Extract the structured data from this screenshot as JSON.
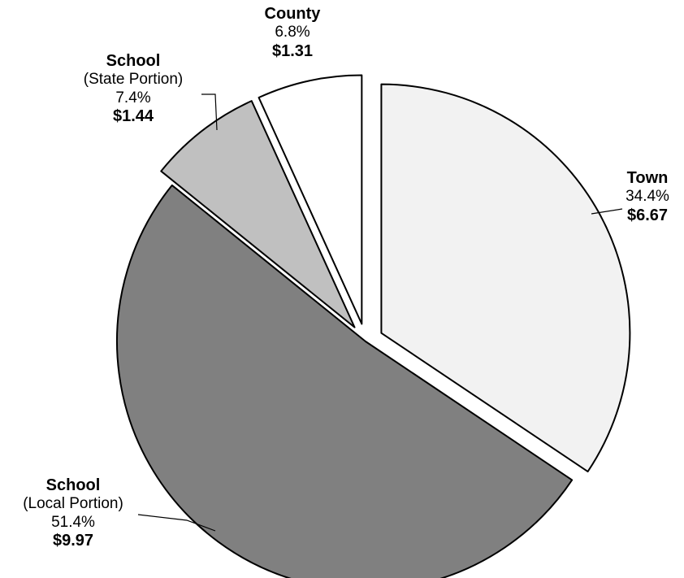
{
  "chart_data": {
    "type": "pie",
    "title": "",
    "start_angle_deg": 0,
    "direction": "clockwise",
    "slices": [
      {
        "name": "Town",
        "sub": "",
        "percent": 34.4,
        "percent_label": "34.4%",
        "value_label": "$6.67",
        "value": 6.67,
        "color": "#f2f2f2",
        "exploded": true
      },
      {
        "name": "School",
        "sub": "(Local Portion)",
        "percent": 51.4,
        "percent_label": "51.4%",
        "value_label": "$9.97",
        "value": 9.97,
        "color": "#808080",
        "exploded": false
      },
      {
        "name": "School",
        "sub": "(State Portion)",
        "percent": 7.4,
        "percent_label": "7.4%",
        "value_label": "$1.44",
        "value": 1.44,
        "color": "#c0c0c0",
        "exploded": true
      },
      {
        "name": "County",
        "sub": "",
        "percent": 6.8,
        "percent_label": "6.8%",
        "value_label": "$1.31",
        "value": 1.31,
        "color": "#ffffff",
        "exploded": true
      }
    ]
  }
}
